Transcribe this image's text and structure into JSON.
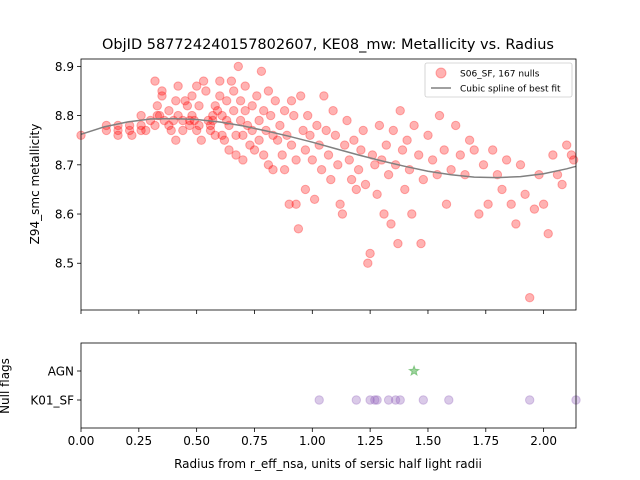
{
  "chart_data": [
    {
      "type": "scatter",
      "title": "ObjID 587724240157802607, KE08_mw: Metallicity vs. Radius",
      "xlabel": "",
      "ylabel": "Z94_smc metallicity",
      "xlim": [
        0.0,
        2.14
      ],
      "ylim": [
        8.405,
        8.915
      ],
      "yticks": [
        8.5,
        8.6,
        8.7,
        8.8,
        8.9
      ],
      "ytick_labels": [
        "8.5",
        "8.6",
        "8.7",
        "8.8",
        "8.9"
      ],
      "legend": {
        "placement": "top-right",
        "entries": [
          {
            "label": "S06_SF, 167 nulls",
            "kind": "marker",
            "color": "#ff0000"
          },
          {
            "label": "Cubic spline of best fit",
            "kind": "line",
            "color": "#808080"
          }
        ]
      },
      "series": [
        {
          "name": "S06_SF, 167 nulls",
          "color": "#ff0000",
          "points": [
            [
              0.0,
              8.76
            ],
            [
              0.11,
              8.77
            ],
            [
              0.11,
              8.78
            ],
            [
              0.16,
              8.78
            ],
            [
              0.16,
              8.77
            ],
            [
              0.16,
              8.76
            ],
            [
              0.21,
              8.77
            ],
            [
              0.21,
              8.78
            ],
            [
              0.22,
              8.76
            ],
            [
              0.26,
              8.8
            ],
            [
              0.26,
              8.78
            ],
            [
              0.26,
              8.77
            ],
            [
              0.28,
              8.77
            ],
            [
              0.3,
              8.79
            ],
            [
              0.32,
              8.78
            ],
            [
              0.32,
              8.87
            ],
            [
              0.33,
              8.8
            ],
            [
              0.33,
              8.82
            ],
            [
              0.34,
              8.8
            ],
            [
              0.35,
              8.85
            ],
            [
              0.35,
              8.84
            ],
            [
              0.36,
              8.79
            ],
            [
              0.38,
              8.78
            ],
            [
              0.38,
              8.81
            ],
            [
              0.39,
              8.77
            ],
            [
              0.4,
              8.79
            ],
            [
              0.41,
              8.83
            ],
            [
              0.41,
              8.75
            ],
            [
              0.42,
              8.86
            ],
            [
              0.42,
              8.8
            ],
            [
              0.44,
              8.77
            ],
            [
              0.44,
              8.79
            ],
            [
              0.45,
              8.83
            ],
            [
              0.46,
              8.82
            ],
            [
              0.47,
              8.79
            ],
            [
              0.47,
              8.78
            ],
            [
              0.48,
              8.84
            ],
            [
              0.48,
              8.8
            ],
            [
              0.49,
              8.79
            ],
            [
              0.5,
              8.77
            ],
            [
              0.5,
              8.86
            ],
            [
              0.51,
              8.82
            ],
            [
              0.51,
              8.78
            ],
            [
              0.52,
              8.75
            ],
            [
              0.53,
              8.87
            ],
            [
              0.54,
              8.85
            ],
            [
              0.55,
              8.79
            ],
            [
              0.56,
              8.78
            ],
            [
              0.56,
              8.77
            ],
            [
              0.57,
              8.79
            ],
            [
              0.57,
              8.8
            ],
            [
              0.58,
              8.82
            ],
            [
              0.58,
              8.76
            ],
            [
              0.59,
              8.81
            ],
            [
              0.6,
              8.87
            ],
            [
              0.6,
              8.84
            ],
            [
              0.61,
              8.8
            ],
            [
              0.61,
              8.76
            ],
            [
              0.62,
              8.75
            ],
            [
              0.63,
              8.83
            ],
            [
              0.63,
              8.79
            ],
            [
              0.64,
              8.78
            ],
            [
              0.64,
              8.73
            ],
            [
              0.65,
              8.87
            ],
            [
              0.66,
              8.85
            ],
            [
              0.66,
              8.81
            ],
            [
              0.67,
              8.76
            ],
            [
              0.67,
              8.72
            ],
            [
              0.68,
              8.9
            ],
            [
              0.69,
              8.83
            ],
            [
              0.69,
              8.79
            ],
            [
              0.7,
              8.76
            ],
            [
              0.7,
              8.71
            ],
            [
              0.71,
              8.86
            ],
            [
              0.71,
              8.81
            ],
            [
              0.72,
              8.78
            ],
            [
              0.73,
              8.74
            ],
            [
              0.74,
              8.82
            ],
            [
              0.74,
              8.77
            ],
            [
              0.75,
              8.73
            ],
            [
              0.76,
              8.84
            ],
            [
              0.77,
              8.79
            ],
            [
              0.77,
              8.75
            ],
            [
              0.78,
              8.89
            ],
            [
              0.79,
              8.81
            ],
            [
              0.79,
              8.72
            ],
            [
              0.8,
              8.77
            ],
            [
              0.81,
              8.85
            ],
            [
              0.81,
              8.7
            ],
            [
              0.82,
              8.8
            ],
            [
              0.83,
              8.76
            ],
            [
              0.83,
              8.69
            ],
            [
              0.84,
              8.83
            ],
            [
              0.85,
              8.75
            ],
            [
              0.86,
              8.78
            ],
            [
              0.87,
              8.72
            ],
            [
              0.88,
              8.81
            ],
            [
              0.88,
              8.69
            ],
            [
              0.89,
              8.76
            ],
            [
              0.9,
              8.62
            ],
            [
              0.91,
              8.83
            ],
            [
              0.91,
              8.74
            ],
            [
              0.92,
              8.8
            ],
            [
              0.93,
              8.71
            ],
            [
              0.93,
              8.62
            ],
            [
              0.94,
              8.57
            ],
            [
              0.95,
              8.84
            ],
            [
              0.96,
              8.77
            ],
            [
              0.97,
              8.73
            ],
            [
              0.97,
              8.65
            ],
            [
              0.98,
              8.8
            ],
            [
              0.99,
              8.76
            ],
            [
              1.0,
              8.71
            ],
            [
              1.01,
              8.63
            ],
            [
              1.02,
              8.78
            ],
            [
              1.03,
              8.74
            ],
            [
              1.04,
              8.69
            ],
            [
              1.05,
              8.84
            ],
            [
              1.06,
              8.77
            ],
            [
              1.07,
              8.72
            ],
            [
              1.08,
              8.67
            ],
            [
              1.09,
              8.81
            ],
            [
              1.1,
              8.76
            ],
            [
              1.11,
              8.7
            ],
            [
              1.12,
              8.62
            ],
            [
              1.13,
              8.6
            ],
            [
              1.14,
              8.74
            ],
            [
              1.15,
              8.79
            ],
            [
              1.16,
              8.71
            ],
            [
              1.17,
              8.67
            ],
            [
              1.18,
              8.75
            ],
            [
              1.19,
              8.65
            ],
            [
              1.2,
              8.69
            ],
            [
              1.21,
              8.73
            ],
            [
              1.22,
              8.77
            ],
            [
              1.23,
              8.66
            ],
            [
              1.24,
              8.5
            ],
            [
              1.25,
              8.52
            ],
            [
              1.26,
              8.72
            ],
            [
              1.27,
              8.7
            ],
            [
              1.28,
              8.64
            ],
            [
              1.29,
              8.78
            ],
            [
              1.3,
              8.71
            ],
            [
              1.31,
              8.6
            ],
            [
              1.32,
              8.74
            ],
            [
              1.33,
              8.68
            ],
            [
              1.34,
              8.58
            ],
            [
              1.35,
              8.77
            ],
            [
              1.36,
              8.7
            ],
            [
              1.37,
              8.54
            ],
            [
              1.38,
              8.81
            ],
            [
              1.39,
              8.73
            ],
            [
              1.4,
              8.65
            ],
            [
              1.41,
              8.75
            ],
            [
              1.42,
              8.69
            ],
            [
              1.43,
              8.6
            ],
            [
              1.44,
              8.78
            ],
            [
              1.46,
              8.72
            ],
            [
              1.47,
              8.54
            ],
            [
              1.48,
              8.67
            ],
            [
              1.5,
              8.76
            ],
            [
              1.52,
              8.71
            ],
            [
              1.54,
              8.68
            ],
            [
              1.55,
              8.8
            ],
            [
              1.57,
              8.73
            ],
            [
              1.58,
              8.62
            ],
            [
              1.6,
              8.69
            ],
            [
              1.62,
              8.78
            ],
            [
              1.64,
              8.72
            ],
            [
              1.66,
              8.68
            ],
            [
              1.68,
              8.75
            ],
            [
              1.7,
              8.73
            ],
            [
              1.72,
              8.6
            ],
            [
              1.74,
              8.7
            ],
            [
              1.76,
              8.62
            ],
            [
              1.78,
              8.73
            ],
            [
              1.8,
              8.68
            ],
            [
              1.82,
              8.65
            ],
            [
              1.84,
              8.71
            ],
            [
              1.86,
              8.62
            ],
            [
              1.88,
              8.58
            ],
            [
              1.9,
              8.7
            ],
            [
              1.92,
              8.64
            ],
            [
              1.94,
              8.43
            ],
            [
              1.96,
              8.61
            ],
            [
              1.98,
              8.68
            ],
            [
              2.0,
              8.62
            ],
            [
              2.02,
              8.56
            ],
            [
              2.04,
              8.72
            ],
            [
              2.06,
              8.68
            ],
            [
              2.08,
              8.66
            ],
            [
              2.1,
              8.74
            ],
            [
              2.12,
              8.72
            ],
            [
              2.13,
              8.71
            ]
          ]
        },
        {
          "name": "Cubic spline of best fit",
          "color": "#808080",
          "points": [
            [
              0.0,
              8.762
            ],
            [
              0.1,
              8.777
            ],
            [
              0.2,
              8.787
            ],
            [
              0.3,
              8.793
            ],
            [
              0.4,
              8.794
            ],
            [
              0.5,
              8.792
            ],
            [
              0.6,
              8.787
            ],
            [
              0.7,
              8.779
            ],
            [
              0.8,
              8.769
            ],
            [
              0.9,
              8.758
            ],
            [
              1.0,
              8.746
            ],
            [
              1.1,
              8.733
            ],
            [
              1.2,
              8.72
            ],
            [
              1.3,
              8.708
            ],
            [
              1.4,
              8.697
            ],
            [
              1.5,
              8.687
            ],
            [
              1.6,
              8.68
            ],
            [
              1.7,
              8.675
            ],
            [
              1.8,
              8.674
            ],
            [
              1.9,
              8.676
            ],
            [
              2.0,
              8.682
            ],
            [
              2.1,
              8.692
            ],
            [
              2.14,
              8.697
            ]
          ]
        }
      ]
    },
    {
      "type": "scatter",
      "title": "",
      "xlabel": "Radius from r_eff_nsa, units of sersic half light radii",
      "ylabel": "Null flags",
      "xlim": [
        0.0,
        2.14
      ],
      "xticks": [
        0.0,
        0.25,
        0.5,
        0.75,
        1.0,
        1.25,
        1.5,
        1.75,
        2.0
      ],
      "xtick_labels": [
        "0.00",
        "0.25",
        "0.50",
        "0.75",
        "1.00",
        "1.25",
        "1.50",
        "1.75",
        "2.00"
      ],
      "categories": [
        "K01_SF",
        "AGN"
      ],
      "series": [
        {
          "name": "AGN",
          "color": "#2ca02c",
          "marker": "star",
          "points": [
            [
              1.44,
              "AGN"
            ]
          ]
        },
        {
          "name": "K01_SF",
          "color": "#9467bd",
          "marker": "circle",
          "points": [
            [
              1.03,
              "K01_SF"
            ],
            [
              1.19,
              "K01_SF"
            ],
            [
              1.25,
              "K01_SF"
            ],
            [
              1.27,
              "K01_SF"
            ],
            [
              1.28,
              "K01_SF"
            ],
            [
              1.33,
              "K01_SF"
            ],
            [
              1.36,
              "K01_SF"
            ],
            [
              1.38,
              "K01_SF"
            ],
            [
              1.48,
              "K01_SF"
            ],
            [
              1.59,
              "K01_SF"
            ],
            [
              1.94,
              "K01_SF"
            ],
            [
              2.14,
              "K01_SF"
            ]
          ]
        }
      ]
    }
  ]
}
